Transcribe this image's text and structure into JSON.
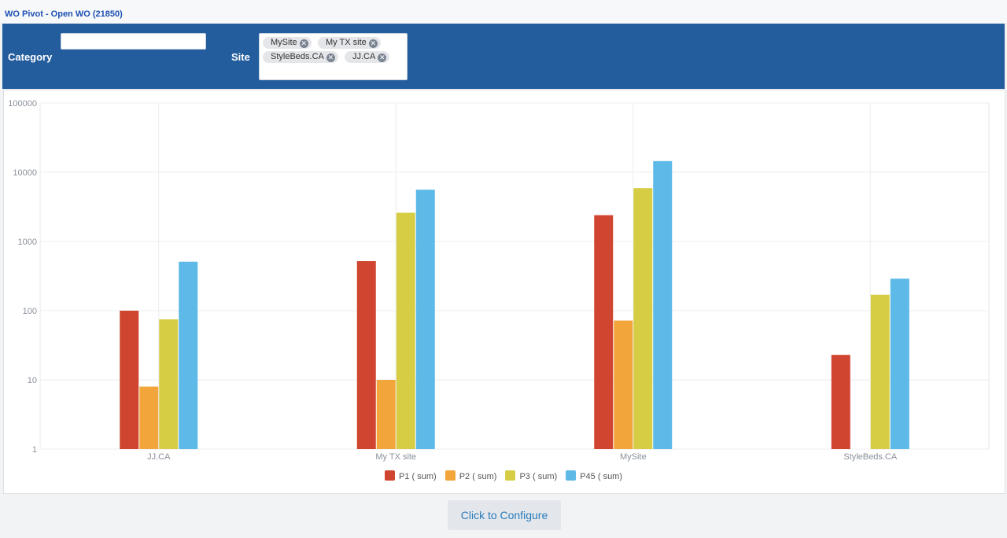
{
  "title": "WO Pivot - Open WO (21850)",
  "filters": {
    "category_label": "Category",
    "category_value": "",
    "site_label": "Site",
    "site_tags": [
      "MySite",
      "My TX site",
      "StyleBeds.CA",
      "JJ.CA"
    ],
    "tag_remove_icon": "close-circle-icon"
  },
  "configure_label": "Click to Configure",
  "colors": {
    "header": "#235d9d",
    "P1": "#cf4530",
    "P2": "#f2a53b",
    "P3": "#d6cd45",
    "P45": "#5cb9e8"
  },
  "chart_data": {
    "type": "bar",
    "yscale": "log",
    "ylim": [
      1,
      100000
    ],
    "yticks": [
      "1",
      "10",
      "100",
      "1000",
      "10000",
      "100000"
    ],
    "categories": [
      "JJ.CA",
      "My TX site",
      "MySite",
      "StyleBeds.CA"
    ],
    "series": [
      {
        "name": "P1 ( sum)",
        "color": "#cf4530",
        "values": [
          100,
          520,
          2400,
          23
        ]
      },
      {
        "name": "P2 ( sum)",
        "color": "#f2a53b",
        "values": [
          8,
          10,
          72,
          null
        ]
      },
      {
        "name": "P3 ( sum)",
        "color": "#d6cd45",
        "values": [
          75,
          2600,
          5900,
          170
        ]
      },
      {
        "name": "P45 ( sum)",
        "color": "#5cb9e8",
        "values": [
          510,
          5600,
          14500,
          290
        ]
      }
    ],
    "grid": true,
    "legend": "bottom-center"
  }
}
